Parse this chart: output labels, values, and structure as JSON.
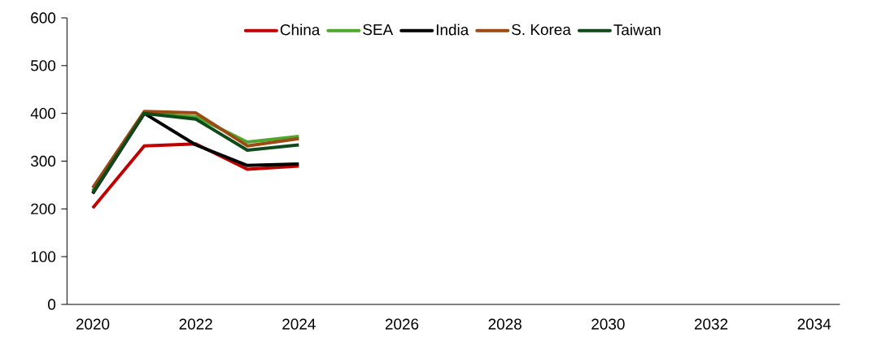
{
  "chart_data": {
    "type": "line",
    "categories": [
      "2020",
      null,
      "2022",
      null,
      "2024",
      null,
      "2026",
      null,
      "2028",
      null,
      "2030",
      null,
      "2032",
      null,
      "2034"
    ],
    "series": [
      {
        "name": "China",
        "color": "#c00000",
        "values": [
          202,
          332,
          336,
          283,
          290,
          null,
          null,
          null,
          null,
          null,
          null,
          null,
          null,
          null,
          null
        ]
      },
      {
        "name": "SEA",
        "color": "#4ea72e",
        "values": [
          238,
          400,
          393,
          340,
          352,
          null,
          null,
          null,
          null,
          null,
          null,
          null,
          null,
          null,
          null
        ]
      },
      {
        "name": "India",
        "color": "#000000",
        "values": [
          232,
          400,
          334,
          291,
          294,
          null,
          null,
          null,
          null,
          null,
          null,
          null,
          null,
          null,
          null
        ]
      },
      {
        "name": "S. Korea",
        "color": "#9c4a14",
        "values": [
          244,
          404,
          401,
          332,
          347,
          null,
          null,
          null,
          null,
          null,
          null,
          null,
          null,
          null,
          null
        ]
      },
      {
        "name": "Taiwan",
        "color": "#0e4a1a",
        "values": [
          234,
          400,
          388,
          323,
          334,
          null,
          null,
          null,
          null,
          null,
          null,
          null,
          null,
          null,
          null
        ]
      }
    ],
    "ylim": [
      0,
      600
    ],
    "yticks": [
      0,
      100,
      200,
      300,
      400,
      500,
      600
    ],
    "grid": false,
    "legend": "top",
    "marker": "none",
    "line_style": "solid"
  }
}
